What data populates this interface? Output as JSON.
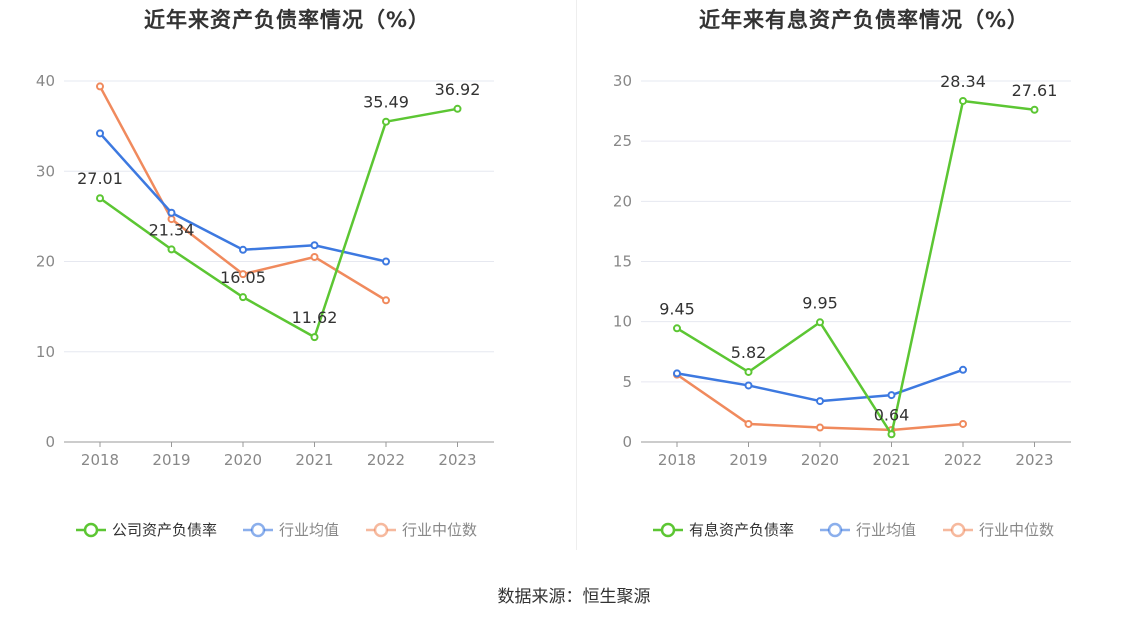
{
  "source": "数据来源：恒生聚源",
  "colors": {
    "company": "#5cc633",
    "avg": "#3d79e0",
    "median": "#f08a5d",
    "grid": "#e6e8f0",
    "axis": "#999999"
  },
  "chart_data": [
    {
      "type": "line",
      "title": "近年来资产负债率情况（%）",
      "categories": [
        "2018",
        "2019",
        "2020",
        "2021",
        "2022",
        "2023"
      ],
      "ylim": [
        0,
        40
      ],
      "yticks": [
        0,
        10,
        20,
        30,
        40
      ],
      "grid": true,
      "legend_position": "bottom",
      "series": [
        {
          "name": "公司资产负债率",
          "color": "#5cc633",
          "values": [
            27.01,
            21.34,
            16.05,
            11.62,
            35.49,
            36.92
          ],
          "labels": [
            "27.01",
            "21.34",
            "16.05",
            "11.62",
            "35.49",
            "36.92"
          ]
        },
        {
          "name": "行业均值",
          "color": "#3d79e0",
          "values": [
            34.2,
            25.4,
            21.3,
            21.8,
            20.0,
            null
          ]
        },
        {
          "name": "行业中位数",
          "color": "#f08a5d",
          "values": [
            39.4,
            24.7,
            18.6,
            20.5,
            15.7,
            null
          ]
        }
      ]
    },
    {
      "type": "line",
      "title": "近年来有息资产负债率情况（%）",
      "categories": [
        "2018",
        "2019",
        "2020",
        "2021",
        "2022",
        "2023"
      ],
      "ylim": [
        0,
        30
      ],
      "yticks": [
        0,
        5,
        10,
        15,
        20,
        25,
        30
      ],
      "grid": true,
      "legend_position": "bottom",
      "series": [
        {
          "name": "有息资产负债率",
          "color": "#5cc633",
          "values": [
            9.45,
            5.82,
            9.95,
            0.64,
            28.34,
            27.61
          ],
          "labels": [
            "9.45",
            "5.82",
            "9.95",
            "0.64",
            "28.34",
            "27.61"
          ]
        },
        {
          "name": "行业均值",
          "color": "#3d79e0",
          "values": [
            5.7,
            4.7,
            3.4,
            3.9,
            6.0,
            null
          ]
        },
        {
          "name": "行业中位数",
          "color": "#f08a5d",
          "values": [
            5.6,
            1.5,
            1.2,
            1.0,
            1.5,
            null
          ]
        }
      ]
    }
  ]
}
